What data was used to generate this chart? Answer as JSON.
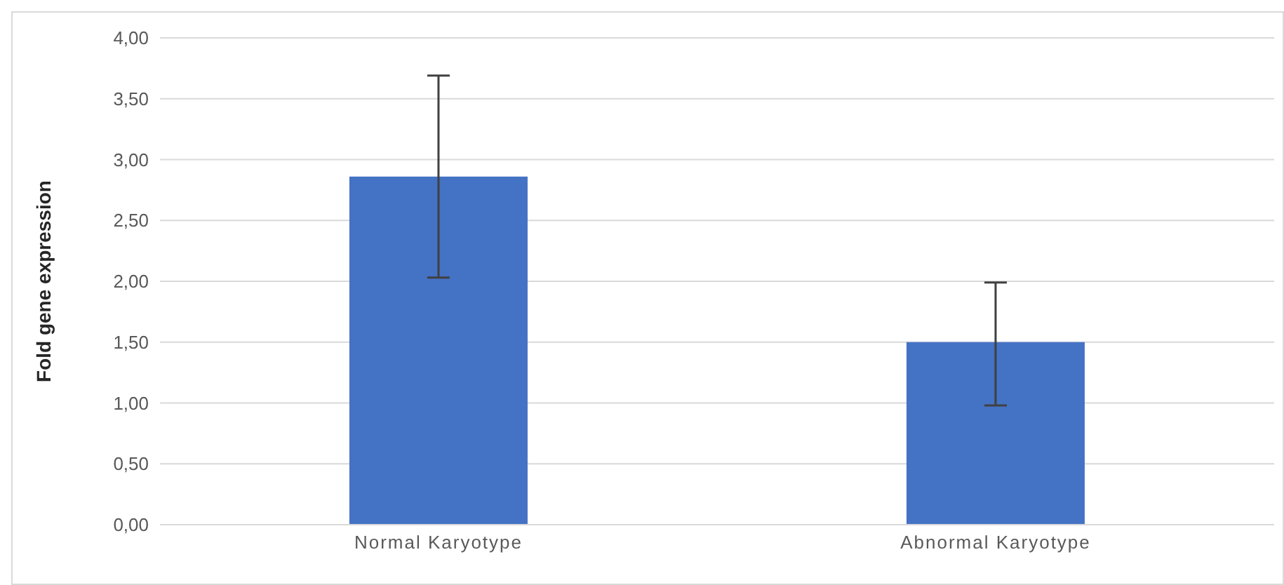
{
  "chart_data": {
    "type": "bar",
    "ylabel": "Fold gene expression",
    "categories": [
      "Normal Karyotype",
      "Abnormal Karyotype"
    ],
    "values": [
      2.86,
      1.5
    ],
    "color": "#4472c4",
    "errors": [
      [
        2.03,
        3.69
      ],
      [
        0.98,
        1.99
      ]
    ],
    "ylim": [
      0,
      4
    ],
    "yticks": [
      {
        "value": 0,
        "label": "0,00"
      },
      {
        "value": 0.5,
        "label": "0,50"
      },
      {
        "value": 1,
        "label": "1,00"
      },
      {
        "value": 1.5,
        "label": "1,50"
      },
      {
        "value": 2,
        "label": "2,00"
      },
      {
        "value": 2.5,
        "label": "2,50"
      },
      {
        "value": 3,
        "label": "3,00"
      },
      {
        "value": 3.5,
        "label": "3,50"
      },
      {
        "value": 4,
        "label": "4,00"
      }
    ],
    "grid": "y"
  }
}
